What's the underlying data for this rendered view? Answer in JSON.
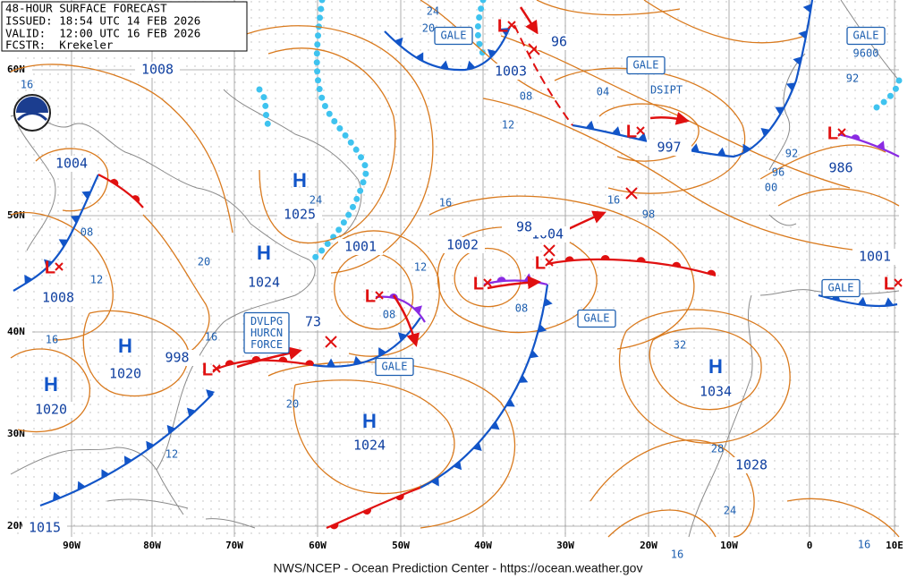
{
  "header": {
    "title": "48-HOUR SURFACE FORECAST",
    "issued": "ISSUED: 18:54 UTC 14 FEB 2026",
    "valid": "VALID:  12:00 UTC 16 FEB 2026",
    "forecaster": "FCSTR:  Krekeler"
  },
  "footer": "NWS/NCEP - Ocean Prediction Center - https://ocean.weather.gov",
  "latitudes": [
    "60N",
    "50N",
    "40N",
    "30N",
    "20N"
  ],
  "longitudes": [
    "90W",
    "80W",
    "70W",
    "60W",
    "50W",
    "40W",
    "30W",
    "20W",
    "10W",
    "0",
    "10E"
  ],
  "highs": [
    {
      "symbol": "H",
      "pressure": "1025"
    },
    {
      "symbol": "H",
      "pressure": "1024"
    },
    {
      "symbol": "H",
      "pressure": "1020"
    },
    {
      "symbol": "H",
      "pressure": "1020"
    },
    {
      "symbol": "H",
      "pressure": "1024"
    },
    {
      "symbol": "H",
      "pressure": "1034"
    },
    {
      "pressure": "1028"
    }
  ],
  "lows": [
    {
      "symbol": "L",
      "pressure": "1008"
    },
    {
      "pressure": "1004"
    },
    {
      "symbol": "L",
      "pressure": "998"
    },
    {
      "symbol": "L",
      "pressure": "1001"
    },
    {
      "symbol": "L",
      "pressure": "1002"
    },
    {
      "symbol": "L",
      "pressure": "1004"
    },
    {
      "symbol": "L",
      "pressure": "1003"
    },
    {
      "symbol": "L",
      "pressure": "997"
    },
    {
      "symbol": "L",
      "pressure": "986"
    },
    {
      "symbol": "L",
      "pressure": "1001"
    },
    {
      "pressure": "1015"
    },
    {
      "pressure": "1008"
    },
    {
      "pressure": "73"
    },
    {
      "pressure": "96"
    },
    {
      "pressure": "98"
    }
  ],
  "isobar_labels": [
    "12",
    "08",
    "16",
    "16",
    "98",
    "12",
    "08",
    "08",
    "20",
    "16",
    "12",
    "20",
    "32",
    "28",
    "24",
    "16",
    "16",
    "24",
    "08",
    "12",
    "16",
    "24",
    "20",
    "16",
    "04",
    "92",
    "96",
    "00",
    "9600",
    "92"
  ],
  "boxes": [
    "GALE",
    "GALE",
    "GALE",
    "GALE",
    "GALE",
    "GALE",
    "DVLPG\nHURCN\nFORCE"
  ],
  "notes": [
    "DSIPT"
  ]
}
